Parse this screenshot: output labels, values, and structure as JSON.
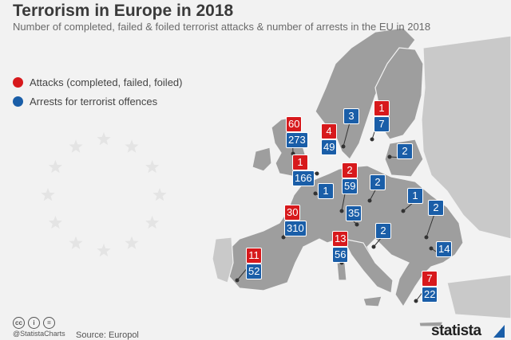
{
  "title": "Terrorism in Europe in 2018",
  "subtitle": "Number of completed, failed & foiled terrorist attacks & number of arrests in the EU in 2018",
  "legend": {
    "attacks": "Attacks (completed, failed, foiled)",
    "arrests": "Arrests for terrorist offences"
  },
  "colors": {
    "attacks": "#d7191c",
    "arrests": "#1a5ea8",
    "land": "#9e9e9e",
    "eu_star": "#e4e4e4"
  },
  "countries": [
    {
      "name": "United Kingdom",
      "attacks": "60",
      "arrests": "273"
    },
    {
      "name": "Netherlands",
      "attacks": "1",
      "arrests": "166"
    },
    {
      "name": "Belgium",
      "arrests": "1"
    },
    {
      "name": "France",
      "attacks": "30",
      "arrests": "310"
    },
    {
      "name": "Spain",
      "attacks": "11",
      "arrests": "52"
    },
    {
      "name": "Denmark",
      "attacks": "4",
      "arrests": "49"
    },
    {
      "name": "Sweden",
      "arrests": "3"
    },
    {
      "name": "Finland",
      "attacks": "1",
      "arrests": "7"
    },
    {
      "name": "Lithuania",
      "arrests": "2"
    },
    {
      "name": "Germany",
      "attacks": "2",
      "arrests": "59"
    },
    {
      "name": "Poland",
      "arrests": "2"
    },
    {
      "name": "Slovakia",
      "arrests": "1"
    },
    {
      "name": "Austria",
      "arrests": "35"
    },
    {
      "name": "Romania",
      "arrests": "2"
    },
    {
      "name": "Croatia",
      "arrests": "2"
    },
    {
      "name": "Italy",
      "attacks": "13",
      "arrests": "56"
    },
    {
      "name": "Bulgaria",
      "arrests": "14"
    },
    {
      "name": "Greece",
      "attacks": "7",
      "arrests": "22"
    }
  ],
  "footer": {
    "cc_icons": [
      "cc-icon",
      "by-icon",
      "nd-icon"
    ],
    "cc_glyphs": [
      "cc",
      "i",
      "="
    ],
    "handle": "@StatistaCharts",
    "source": "Source: Europol",
    "logo": "statista"
  }
}
